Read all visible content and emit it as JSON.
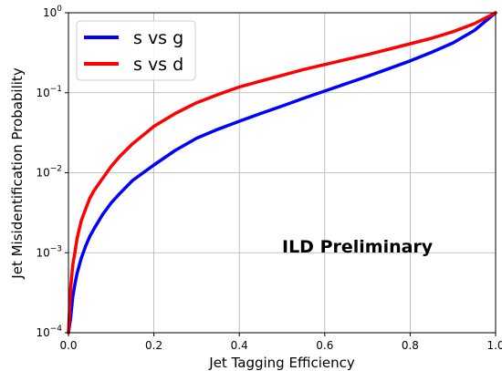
{
  "chart_data": {
    "type": "line",
    "xlabel": "Jet Tagging Efficiency",
    "ylabel": "Jet Misidentification Probability",
    "xlim": [
      0.0,
      1.0
    ],
    "ylim": [
      0.0001,
      1
    ],
    "yscale": "log",
    "grid": true,
    "legend_placement": "top-left",
    "x_ticks": [
      {
        "value": 0.0,
        "label": "0.0"
      },
      {
        "value": 0.2,
        "label": "0.2"
      },
      {
        "value": 0.4,
        "label": "0.4"
      },
      {
        "value": 0.6,
        "label": "0.6"
      },
      {
        "value": 0.8,
        "label": "0.8"
      },
      {
        "value": 1.0,
        "label": "1.0"
      }
    ],
    "y_ticks": [
      {
        "value": 0.0001,
        "base": "10",
        "exp": "−4"
      },
      {
        "value": 0.001,
        "base": "10",
        "exp": "−3"
      },
      {
        "value": 0.01,
        "base": "10",
        "exp": "−2"
      },
      {
        "value": 0.1,
        "base": "10",
        "exp": "−1"
      },
      {
        "value": 1,
        "base": "10",
        "exp": "0"
      }
    ],
    "annotation": "ILD Preliminary",
    "series": [
      {
        "name": "s vs g",
        "color": "#0000ff",
        "x": [
          0.0,
          0.005,
          0.01,
          0.015,
          0.02,
          0.03,
          0.04,
          0.05,
          0.06,
          0.08,
          0.1,
          0.12,
          0.15,
          0.2,
          0.25,
          0.3,
          0.35,
          0.4,
          0.45,
          0.5,
          0.55,
          0.6,
          0.65,
          0.7,
          0.75,
          0.8,
          0.85,
          0.9,
          0.95,
          1.0
        ],
        "y": [
          0.0001,
          0.00015,
          0.00028,
          0.0004,
          0.00055,
          0.00085,
          0.0012,
          0.0016,
          0.002,
          0.003,
          0.0042,
          0.0055,
          0.008,
          0.0125,
          0.019,
          0.027,
          0.035,
          0.044,
          0.055,
          0.068,
          0.085,
          0.105,
          0.13,
          0.16,
          0.2,
          0.25,
          0.32,
          0.42,
          0.6,
          1.0
        ]
      },
      {
        "name": "s vs d",
        "color": "#ff0000",
        "x": [
          0.0,
          0.005,
          0.01,
          0.015,
          0.02,
          0.03,
          0.04,
          0.05,
          0.06,
          0.08,
          0.1,
          0.12,
          0.15,
          0.2,
          0.25,
          0.3,
          0.35,
          0.4,
          0.45,
          0.5,
          0.55,
          0.6,
          0.65,
          0.7,
          0.75,
          0.8,
          0.85,
          0.9,
          0.95,
          1.0
        ],
        "y": [
          0.0001,
          0.00035,
          0.0007,
          0.001,
          0.0015,
          0.0025,
          0.0035,
          0.0048,
          0.006,
          0.0085,
          0.012,
          0.016,
          0.023,
          0.038,
          0.055,
          0.075,
          0.095,
          0.118,
          0.14,
          0.165,
          0.195,
          0.225,
          0.26,
          0.3,
          0.35,
          0.41,
          0.48,
          0.58,
          0.73,
          1.0
        ]
      }
    ]
  }
}
